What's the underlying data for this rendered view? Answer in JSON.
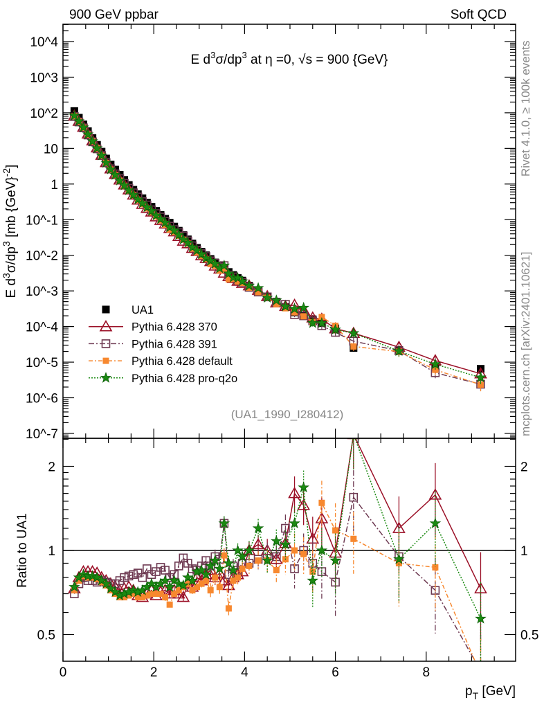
{
  "header": {
    "left": "900 GeV ppbar",
    "right": "Soft QCD"
  },
  "side": {
    "rivet": "Rivet 4.1.0, ≥ 100k events",
    "mcplots": "mcplots.cern.ch [arXiv:2401.10621]"
  },
  "analysis_id": "(UA1_1990_I280412)",
  "colors": {
    "UA1": "#000000",
    "p370": "#9b1027",
    "p391": "#6e3a52",
    "pdef": "#f7882f",
    "pq2o": "#1b8a12"
  },
  "chart_data": {
    "type": "scatter",
    "title": {
      "pre": "E   d",
      "sup1": "3",
      "mid": "σ/dp",
      "sup2": "3",
      "post": " at η =0, √s = 900 {GeV}"
    },
    "ylabel": {
      "pre": "E d",
      "sup1": "3",
      "mid": "σ/dp",
      "sup2": "3",
      "post": " [mb {GeV}",
      "sup3": "-2",
      "end": "]"
    },
    "ratio_ylabel": "Ratio to UA1",
    "xlabel": {
      "main": "p",
      "sub": "T",
      "post": " [GeV]"
    },
    "xlim": [
      0,
      9.97
    ],
    "ylim": [
      1.4e-07,
      31000.0
    ],
    "ratio_ylim": [
      0.4,
      2.52
    ],
    "yscale": "log",
    "x_ticks": [
      "0",
      "2",
      "4",
      "6",
      "8"
    ],
    "y_ticks": [
      "10^4",
      "10^3",
      "10^2",
      "10",
      "1",
      "10^-1",
      "10^-2",
      "10^-3",
      "10^-4",
      "10^-5",
      "10^-6",
      "10^-7"
    ],
    "ratio_ticks": [
      "0.5",
      "1",
      "2"
    ],
    "legend_position": "lower-left",
    "legend": [
      "UA1",
      "Pythia 6.428 370",
      "Pythia 6.428 391",
      "Pythia 6.428 default",
      "Pythia 6.428 pro-q2o"
    ],
    "pT": [
      0.25,
      0.35,
      0.45,
      0.55,
      0.65,
      0.75,
      0.85,
      0.95,
      1.05,
      1.15,
      1.25,
      1.35,
      1.45,
      1.55,
      1.65,
      1.75,
      1.85,
      1.95,
      2.05,
      2.15,
      2.25,
      2.35,
      2.45,
      2.55,
      2.65,
      2.75,
      2.85,
      2.95,
      3.05,
      3.15,
      3.25,
      3.35,
      3.45,
      3.55,
      3.65,
      3.75,
      3.85,
      3.95,
      4.1,
      4.3,
      4.5,
      4.7,
      4.9,
      5.1,
      5.3,
      5.5,
      5.7,
      6.0,
      6.4,
      7.4,
      8.2,
      9.2
    ],
    "UA1": [
      112,
      72.8,
      47.2,
      30.5,
      19.6,
      12.6,
      8.1,
      5.2,
      3.53,
      2.54,
      1.82,
      1.31,
      0.94,
      0.69,
      0.52,
      0.4,
      0.3,
      0.23,
      0.176,
      0.136,
      0.106,
      0.082,
      0.064,
      0.049,
      0.037,
      0.028,
      0.0214,
      0.0162,
      0.0126,
      0.01,
      0.0079,
      0.0063,
      0.005,
      0.0041,
      0.0034,
      0.0028,
      0.0023,
      0.00195,
      0.0014,
      0.001,
      0.0007,
      0.0005,
      0.00035,
      0.00025,
      0.0002,
      0.00016,
      0.000125,
      8.9e-05,
      2.5e-05,
      2.2e-05,
      7e-06,
      6.5e-06
    ],
    "series": [
      {
        "name": "Pythia 6.428 370",
        "key": "p370",
        "ratio": [
          0.73,
          0.8,
          0.84,
          0.84,
          0.84,
          0.83,
          0.8,
          0.78,
          0.76,
          0.74,
          0.72,
          0.73,
          0.74,
          0.72,
          0.69,
          0.68,
          0.7,
          0.72,
          0.69,
          0.71,
          0.72,
          0.7,
          0.72,
          0.7,
          0.68,
          0.76,
          0.74,
          0.8,
          0.78,
          0.82,
          0.85,
          0.8,
          0.83,
          0.78,
          0.75,
          0.8,
          0.82,
          0.84,
          1.0,
          1.05,
          1.0,
          0.93,
          1.06,
          1.6,
          1.45,
          1.1,
          1.3,
          0.98,
          2.6,
          1.2,
          1.58,
          0.73
        ]
      },
      {
        "name": "Pythia 6.428 391",
        "key": "p391",
        "ratio": [
          0.7,
          0.76,
          0.8,
          0.78,
          0.78,
          0.77,
          0.78,
          0.77,
          0.76,
          0.76,
          0.78,
          0.8,
          0.81,
          0.82,
          0.83,
          0.8,
          0.86,
          0.82,
          0.84,
          0.87,
          0.85,
          0.8,
          0.82,
          0.88,
          0.94,
          0.9,
          0.86,
          0.85,
          0.88,
          0.92,
          0.88,
          0.95,
          0.93,
          1.25,
          0.82,
          0.88,
          0.85,
          0.9,
          0.9,
          0.93,
          0.97,
          0.95,
          1.2,
          0.86,
          1.0,
          0.9,
          0.84,
          0.77,
          1.55,
          0.95,
          0.72,
          0.37
        ]
      },
      {
        "name": "Pythia 6.428 default",
        "key": "pdef",
        "ratio": [
          0.72,
          0.78,
          0.81,
          0.8,
          0.8,
          0.79,
          0.77,
          0.75,
          0.72,
          0.7,
          0.68,
          0.68,
          0.69,
          0.7,
          0.68,
          0.68,
          0.69,
          0.7,
          0.7,
          0.7,
          0.68,
          0.64,
          0.7,
          0.72,
          0.74,
          0.76,
          0.72,
          0.74,
          0.76,
          0.78,
          0.72,
          0.8,
          0.74,
          0.96,
          0.62,
          0.78,
          0.8,
          0.86,
          0.88,
          0.92,
          0.92,
          0.85,
          0.93,
          1.0,
          0.97,
          0.84,
          1.48,
          1.18,
          1.1,
          0.9,
          0.87,
          0.36
        ]
      },
      {
        "name": "Pythia 6.428 pro-q2o",
        "key": "pq2o",
        "ratio": [
          0.74,
          0.8,
          0.82,
          0.81,
          0.81,
          0.8,
          0.78,
          0.76,
          0.73,
          0.71,
          0.69,
          0.7,
          0.71,
          0.72,
          0.71,
          0.72,
          0.74,
          0.76,
          0.74,
          0.76,
          0.78,
          0.74,
          0.78,
          0.76,
          0.75,
          0.8,
          0.78,
          0.84,
          0.85,
          0.82,
          0.88,
          0.92,
          0.86,
          1.25,
          0.9,
          0.85,
          1.0,
          0.95,
          1.0,
          1.2,
          0.92,
          1.08,
          1.05,
          1.25,
          1.68,
          0.78,
          1.0,
          0.92,
          2.6,
          0.93,
          1.25,
          0.57
        ]
      }
    ],
    "ratio_rel_err": [
      0.01,
      0.01,
      0.01,
      0.01,
      0.01,
      0.01,
      0.01,
      0.01,
      0.01,
      0.01,
      0.01,
      0.01,
      0.01,
      0.01,
      0.01,
      0.01,
      0.01,
      0.01,
      0.01,
      0.01,
      0.03,
      0.03,
      0.03,
      0.03,
      0.03,
      0.03,
      0.03,
      0.03,
      0.03,
      0.03,
      0.06,
      0.06,
      0.06,
      0.06,
      0.06,
      0.06,
      0.06,
      0.06,
      0.08,
      0.08,
      0.1,
      0.1,
      0.12,
      0.15,
      0.15,
      0.2,
      0.2,
      0.25,
      0.25,
      0.3,
      0.3,
      0.35
    ]
  }
}
